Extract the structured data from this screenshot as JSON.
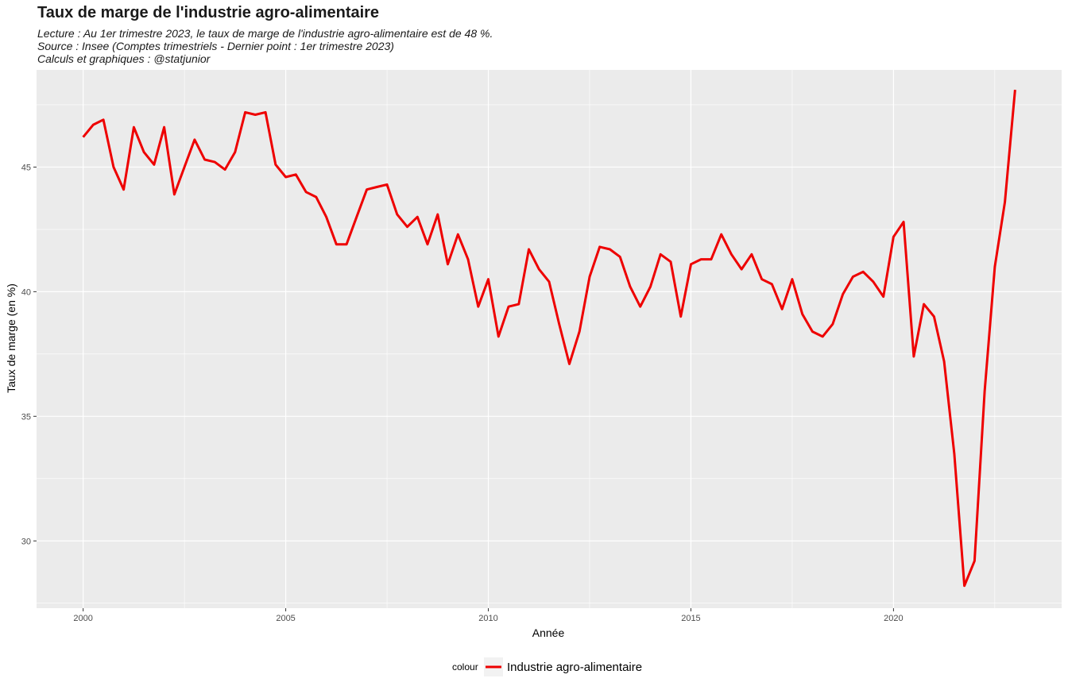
{
  "chart_data": {
    "type": "line",
    "title": "Taux de marge de l'industrie agro-alimentaire",
    "subtitle": [
      "Lecture : Au 1er trimestre 2023, le taux de marge de l'industrie agro-alimentaire est de 48 %.",
      "Source : Insee (Comptes trimestriels - Dernier point : 1er trimestre 2023)",
      "Calculs et graphiques : @statjunior"
    ],
    "xlabel": "Année",
    "ylabel": "Taux de marge (en %)",
    "xlim": [
      1998.85,
      2024.15
    ],
    "ylim": [
      27.3,
      48.9
    ],
    "x_ticks": [
      "2000",
      "2005",
      "2010",
      "2015",
      "2020"
    ],
    "y_ticks": [
      "30",
      "35",
      "40",
      "45"
    ],
    "grid": true,
    "legend": {
      "position": "bottom",
      "title": "colour",
      "entries": [
        "Industrie agro-alimentaire"
      ]
    },
    "colors": {
      "series": "#ee0000",
      "panel": "#ebebeb",
      "grid": "#ffffff"
    },
    "series": [
      {
        "name": "Industrie agro-alimentaire",
        "x_start": 2000.0,
        "x_step": 0.25,
        "values": [
          46.2,
          46.7,
          46.9,
          45.0,
          44.1,
          46.6,
          45.6,
          45.1,
          46.6,
          43.9,
          45.0,
          46.1,
          45.3,
          45.2,
          44.9,
          45.6,
          47.2,
          47.1,
          47.2,
          45.1,
          44.6,
          44.7,
          44.0,
          43.8,
          43.0,
          41.9,
          41.9,
          43.0,
          44.1,
          44.2,
          44.3,
          43.1,
          42.6,
          43.0,
          41.9,
          43.1,
          41.1,
          42.3,
          41.3,
          39.4,
          40.5,
          38.2,
          39.4,
          39.5,
          41.7,
          40.9,
          40.4,
          38.7,
          37.1,
          38.4,
          40.6,
          41.8,
          41.7,
          41.4,
          40.2,
          39.4,
          40.2,
          41.5,
          41.2,
          39.0,
          41.1,
          41.3,
          41.3,
          42.3,
          41.5,
          40.9,
          41.5,
          40.5,
          40.3,
          39.3,
          40.5,
          39.1,
          38.4,
          38.2,
          38.7,
          39.9,
          40.6,
          40.8,
          40.4,
          39.8,
          42.2,
          42.8,
          37.4,
          39.5,
          39.0,
          37.2,
          33.5,
          28.2,
          29.2,
          36.0,
          41.0,
          43.6,
          48.1
        ]
      }
    ]
  }
}
